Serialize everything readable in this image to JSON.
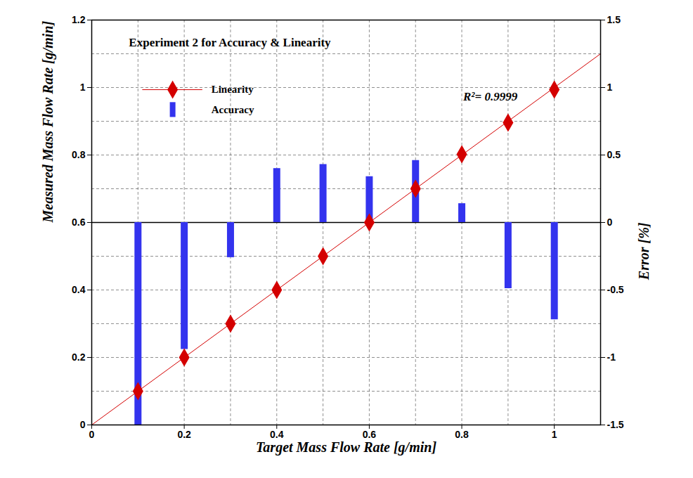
{
  "chart_data": {
    "type": "line",
    "title": "Experiment 2 for Accuracy & Linearity",
    "x_label": "Target Mass Flow Rate [g/min]",
    "y_label": "Measured Mass Flow Rate [g/min]",
    "y2_label": "Error [%]",
    "annotation": "R²= 0.9999",
    "x": [
      0.1,
      0.2,
      0.3,
      0.4,
      0.5,
      0.6,
      0.7,
      0.8,
      0.9,
      1.0
    ],
    "series": [
      {
        "name": "Linearity",
        "type": "line",
        "marker": "diamond",
        "line_style": "solid",
        "color": "#d40000",
        "values": [
          0.1,
          0.2,
          0.3,
          0.4,
          0.5,
          0.6,
          0.7,
          0.802,
          0.896,
          0.994
        ],
        "trendline": {
          "x": [
            0,
            1.1
          ],
          "values": [
            0,
            1.1
          ]
        }
      },
      {
        "name": "Accuracy",
        "type": "bar",
        "axis": "y2",
        "color": "#3333ee",
        "values": [
          -1.5,
          -0.94,
          -0.26,
          0.4,
          0.43,
          0.34,
          0.46,
          0.14,
          -0.49,
          -0.72
        ]
      }
    ],
    "xlim": [
      0,
      1.1
    ],
    "xticks": [
      0,
      0.2,
      0.4,
      0.6,
      0.8,
      1
    ],
    "ylim": [
      0,
      1.2
    ],
    "yticks": [
      0,
      0.2,
      0.4,
      0.6,
      0.8,
      1,
      1.2
    ],
    "y2lim": [
      -1.5,
      1.5
    ],
    "y2ticks": [
      -1.5,
      -1,
      -0.5,
      0,
      0.5,
      1,
      1.5
    ],
    "grid": true,
    "legend": "upper left"
  }
}
